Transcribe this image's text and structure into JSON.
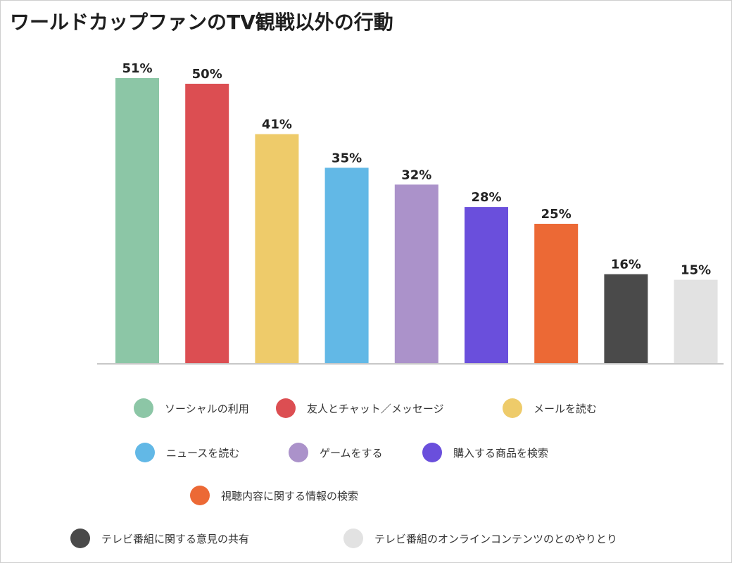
{
  "chart_data": {
    "type": "bar",
    "title": "ワールドカップファンのTV観戦以外の行動",
    "categories": [
      "ソーシャルの利用",
      "友人とチャット／メッセージ",
      "メールを読む",
      "ニュースを読む",
      "ゲームをする",
      "購入する商品を検索",
      "視聴内容に関する情報の検索",
      "テレビ番組に関する意見の共有",
      "テレビ番組のオンラインコンテンツのとのやりとり"
    ],
    "values": [
      51,
      50,
      41,
      35,
      32,
      28,
      25,
      16,
      15
    ],
    "value_labels": [
      "51%",
      "50%",
      "41%",
      "35%",
      "32%",
      "28%",
      "25%",
      "16%",
      "15%"
    ],
    "colors": [
      "#8cc6a6",
      "#dc4e52",
      "#eecb6a",
      "#62b8e6",
      "#ab92ca",
      "#6a4fdc",
      "#ec6935",
      "#4a4a4a",
      "#e2e2e2"
    ],
    "unit": "%",
    "ylim": [
      0,
      51
    ],
    "grid": false,
    "legend": "bottom"
  }
}
